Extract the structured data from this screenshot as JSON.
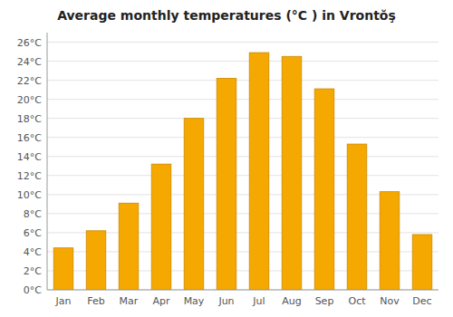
{
  "chart_data": {
    "type": "bar",
    "title": "Average monthly temperatures (°C ) in Vrontŏş",
    "categories": [
      "Jan",
      "Feb",
      "Mar",
      "Apr",
      "May",
      "Jun",
      "Jul",
      "Aug",
      "Sep",
      "Oct",
      "Nov",
      "Dec"
    ],
    "values": [
      4.4,
      6.2,
      9.1,
      13.2,
      18.0,
      22.2,
      24.9,
      24.5,
      21.1,
      15.3,
      10.3,
      5.8
    ],
    "color": "#F5A800",
    "ylim": [
      0,
      27
    ],
    "yticks": [
      {
        "value": 0,
        "label": "0°C"
      },
      {
        "value": 2,
        "label": "2°C"
      },
      {
        "value": 4,
        "label": "4°C"
      },
      {
        "value": 6,
        "label": "6°C"
      },
      {
        "value": 8,
        "label": "8°C"
      },
      {
        "value": 10,
        "label": "10°C"
      },
      {
        "value": 12,
        "label": "12°C"
      },
      {
        "value": 14,
        "label": "14°C"
      },
      {
        "value": 16,
        "label": "16°C"
      },
      {
        "value": 18,
        "label": "18°C"
      },
      {
        "value": 20,
        "label": "20°C"
      },
      {
        "value": 22,
        "label": "22°C"
      },
      {
        "value": 24,
        "label": "24°C"
      },
      {
        "value": 26,
        "label": "26°C"
      }
    ],
    "grid": true
  }
}
